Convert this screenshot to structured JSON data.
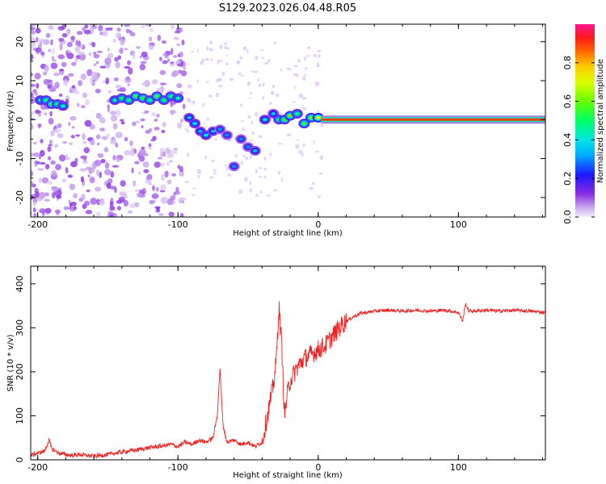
{
  "title": "S129.2023.026.04.48.R05",
  "chart_data": [
    {
      "type": "heatmap",
      "xlabel": "Height of straight line (km)",
      "ylabel": "Frequency (Hz)",
      "xlim": [
        -205,
        162
      ],
      "ylim": [
        -25,
        24.5
      ],
      "xticks": [
        -200,
        -100,
        0,
        100
      ],
      "yticks": [
        -20,
        -10,
        0,
        10,
        20
      ],
      "colorbar": {
        "label": "Normalized spectral amplitude",
        "range": [
          0,
          1
        ],
        "ticks": [
          0.0,
          0.2,
          0.4,
          0.6,
          0.8
        ],
        "tick_labels": [
          "0.0",
          "0.2",
          "0.4",
          "0.6",
          "0.8"
        ]
      },
      "ridge": [
        {
          "x": -198,
          "y": 5,
          "v": 0.45
        },
        {
          "x": -194,
          "y": 5,
          "v": 0.5
        },
        {
          "x": -190,
          "y": 4,
          "v": 0.55
        },
        {
          "x": -186,
          "y": 4,
          "v": 0.5
        },
        {
          "x": -182,
          "y": 3.5,
          "v": 0.45
        },
        {
          "x": -145,
          "y": 5,
          "v": 0.45
        },
        {
          "x": -140,
          "y": 5.5,
          "v": 0.5
        },
        {
          "x": -135,
          "y": 5,
          "v": 0.5
        },
        {
          "x": -130,
          "y": 6,
          "v": 0.55
        },
        {
          "x": -125,
          "y": 5.5,
          "v": 0.55
        },
        {
          "x": -120,
          "y": 5,
          "v": 0.5
        },
        {
          "x": -115,
          "y": 6,
          "v": 0.55
        },
        {
          "x": -110,
          "y": 5,
          "v": 0.5
        },
        {
          "x": -105,
          "y": 6,
          "v": 0.5
        },
        {
          "x": -100,
          "y": 5.5,
          "v": 0.45
        },
        {
          "x": -92,
          "y": 0.5,
          "v": 0.35
        },
        {
          "x": -88,
          "y": -1,
          "v": 0.4
        },
        {
          "x": -84,
          "y": -3,
          "v": 0.35
        },
        {
          "x": -80,
          "y": -4,
          "v": 0.4
        },
        {
          "x": -75,
          "y": -3,
          "v": 0.35
        },
        {
          "x": -70,
          "y": -2.5,
          "v": 0.3
        },
        {
          "x": -65,
          "y": -4,
          "v": 0.3
        },
        {
          "x": -60,
          "y": -12,
          "v": 0.3
        },
        {
          "x": -55,
          "y": -5,
          "v": 0.3
        },
        {
          "x": -50,
          "y": -7,
          "v": 0.3
        },
        {
          "x": -45,
          "y": -8,
          "v": 0.35
        },
        {
          "x": -38,
          "y": 0,
          "v": 0.4
        },
        {
          "x": -32,
          "y": 1.5,
          "v": 0.35
        },
        {
          "x": -28,
          "y": 0,
          "v": 0.5
        },
        {
          "x": -24,
          "y": 0,
          "v": 0.55
        },
        {
          "x": -20,
          "y": 1,
          "v": 0.6
        },
        {
          "x": -15,
          "y": 1.5,
          "v": 0.5
        },
        {
          "x": -10,
          "y": -1,
          "v": 0.55
        },
        {
          "x": -5,
          "y": 0.5,
          "v": 0.6
        },
        {
          "x": 0,
          "y": 0.5,
          "v": 0.7
        }
      ],
      "carrier": {
        "x_start": 2,
        "x_end": 162,
        "y": 0,
        "v": 0.9
      }
    },
    {
      "type": "line",
      "xlabel": "Height of straight line (km)",
      "ylabel": "SNR (10 * v/v)",
      "xlim": [
        -205,
        162
      ],
      "ylim": [
        0,
        440
      ],
      "xticks": [
        -200,
        -100,
        0,
        100
      ],
      "yticks": [
        0,
        100,
        200,
        300,
        400
      ],
      "series": [
        {
          "color": "#ee2222",
          "x": [
            -205,
            -200,
            -195,
            -192,
            -190,
            -185,
            -180,
            -175,
            -170,
            -165,
            -160,
            -155,
            -150,
            -145,
            -140,
            -135,
            -130,
            -125,
            -120,
            -115,
            -110,
            -105,
            -100,
            -95,
            -90,
            -85,
            -80,
            -75,
            -72,
            -70,
            -68,
            -65,
            -60,
            -55,
            -50,
            -45,
            -40,
            -35,
            -32,
            -30,
            -28,
            -26,
            -24,
            -22,
            -20,
            -15,
            -10,
            -5,
            0,
            5,
            10,
            15,
            20,
            25,
            30,
            35,
            40,
            50,
            60,
            70,
            80,
            90,
            100,
            103,
            105,
            107,
            110,
            120,
            130,
            140,
            150,
            162
          ],
          "y": [
            10,
            15,
            20,
            45,
            25,
            15,
            12,
            10,
            12,
            10,
            8,
            10,
            12,
            15,
            18,
            20,
            22,
            25,
            28,
            30,
            32,
            35,
            30,
            40,
            35,
            45,
            40,
            50,
            100,
            210,
            80,
            40,
            45,
            35,
            40,
            30,
            40,
            120,
            170,
            220,
            350,
            260,
            100,
            150,
            180,
            210,
            230,
            240,
            250,
            260,
            280,
            300,
            315,
            325,
            333,
            335,
            338,
            340,
            338,
            340,
            338,
            340,
            335,
            315,
            355,
            340,
            338,
            340,
            338,
            340,
            338,
            335
          ]
        }
      ]
    }
  ]
}
